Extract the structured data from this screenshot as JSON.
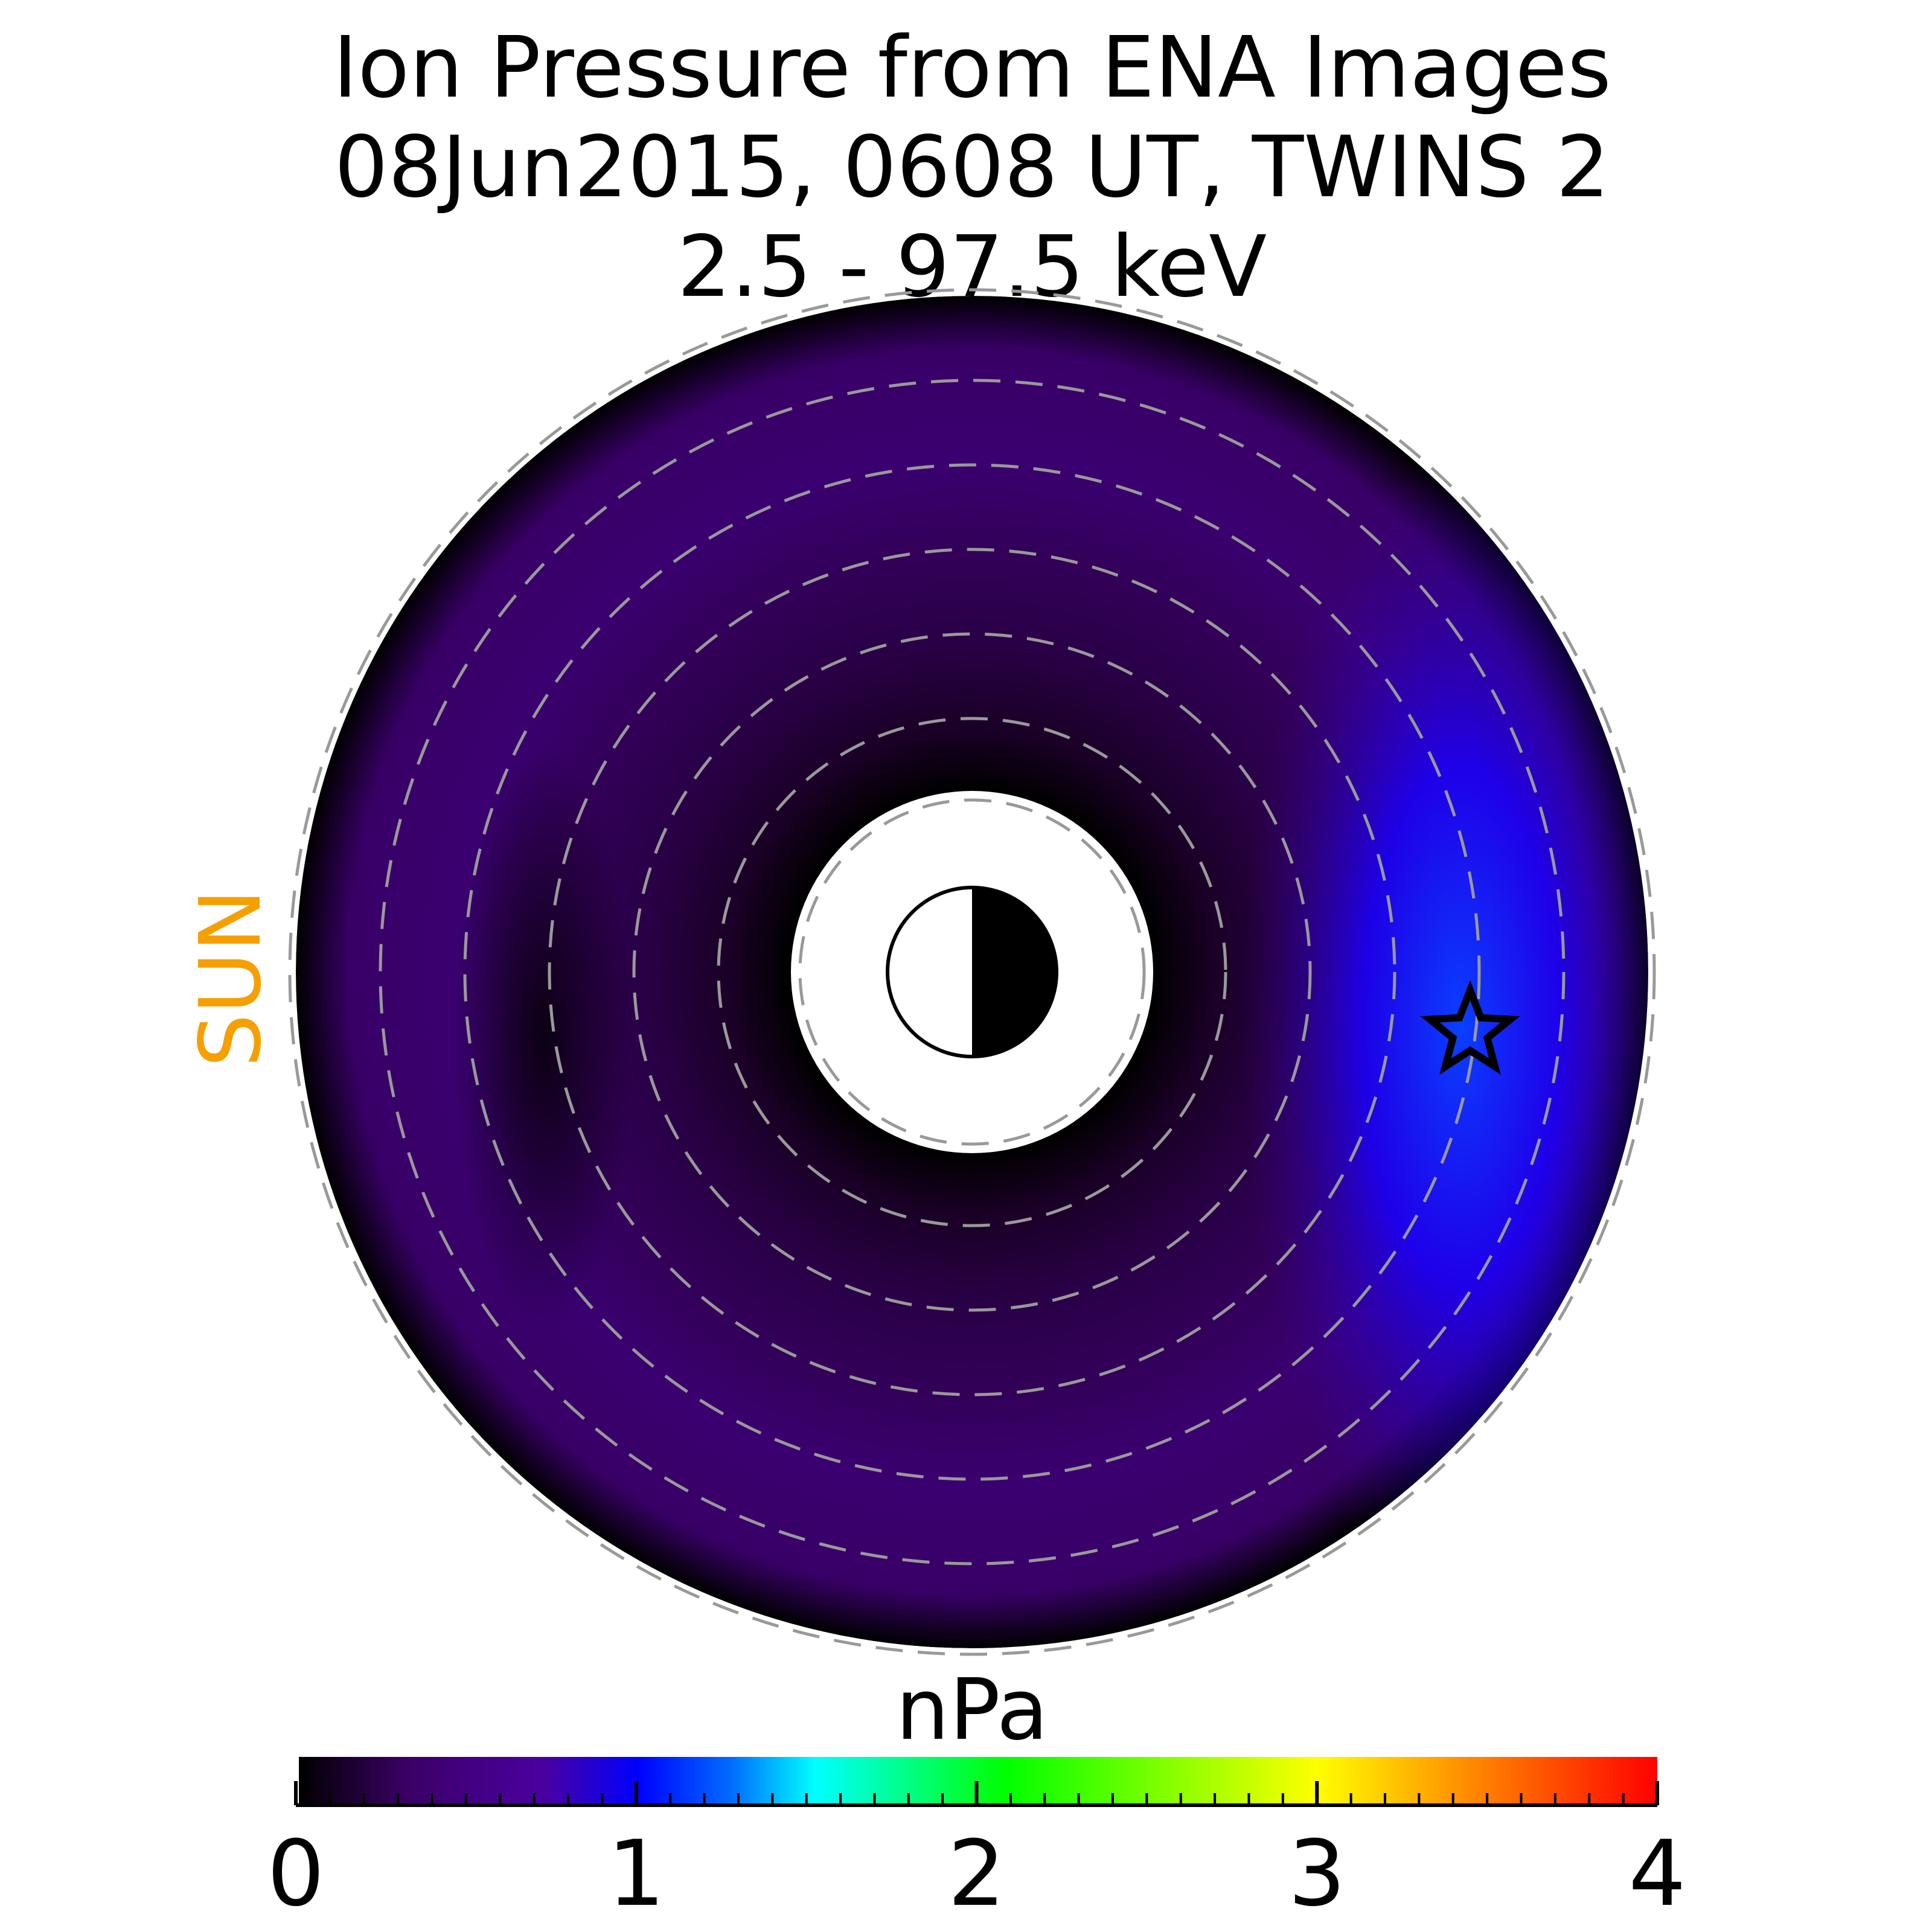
{
  "chart_data": {
    "type": "heatmap",
    "projection": "polar equatorial map",
    "title": [
      "Ion Pressure from  ENA Images",
      "08Jun2015, 0608 UT,  TWINS 2",
      "2.5 - 97.5 keV"
    ],
    "sun_direction": "left",
    "sun_label": "SUN",
    "colorbar": {
      "label": "nPa",
      "range": [
        0,
        4
      ],
      "ticks": [
        "0",
        "1",
        "2",
        "3",
        "4"
      ],
      "tick_values": [
        0,
        1,
        2,
        3,
        4
      ],
      "colormap": [
        "#000000",
        "#3b0066",
        "#0000ff",
        "#0080ff",
        "#00ffff",
        "#00ff00",
        "#ffff00",
        "#ff8000",
        "#ff0000"
      ]
    },
    "distribution": {
      "max_pressure_nPa": 1.0,
      "peak_location": "dusk side (right of Earth)",
      "min_pressure_nPa": 0.0
    },
    "grid": "dashed concentric circles",
    "markers": [
      "star",
      "earth-day-night-symbol"
    ]
  },
  "colors": {
    "sun_label": "#f5a000",
    "grid": "#999999"
  }
}
